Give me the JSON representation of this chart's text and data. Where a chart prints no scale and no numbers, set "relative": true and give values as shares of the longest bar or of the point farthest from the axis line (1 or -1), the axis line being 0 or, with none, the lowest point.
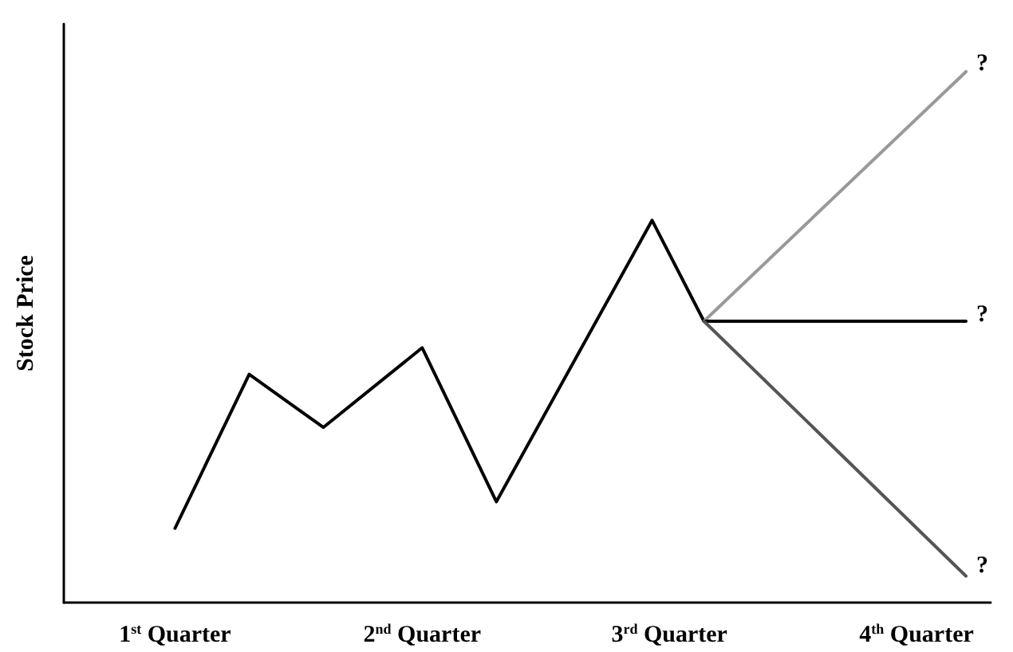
{
  "chart_data": {
    "type": "line",
    "relative": true,
    "ylabel": "Stock Price",
    "xlim": [
      0.55,
      4.3
    ],
    "xticks": [
      {
        "value": 1,
        "label": "1$^{st}$ Quarter"
      },
      {
        "value": 2,
        "label": "2$^{nd}$ Quarter"
      },
      {
        "value": 3,
        "label": "3$^{rd}$ Quarter"
      },
      {
        "value": 4,
        "label": "4$^{th}$ Quarter"
      }
    ],
    "series": [
      {
        "color": "#000000",
        "x": [
          1.0,
          1.3,
          1.6,
          2.0,
          2.3,
          2.93,
          3.14
        ],
        "values": [
          0.14,
          0.43,
          0.33,
          0.48,
          0.19,
          0.72,
          0.53
        ]
      },
      {
        "color": "#999999",
        "x": [
          3.14,
          4.2
        ],
        "values": [
          0.53,
          1
        ]
      },
      {
        "color": "#000000",
        "x": [
          3.14,
          4.2
        ],
        "values": [
          0.53,
          0.53
        ]
      },
      {
        "color": "#555555",
        "x": [
          3.14,
          4.2
        ],
        "values": [
          0.53,
          0.05
        ]
      }
    ],
    "annotations": [
      "?",
      "?",
      "?"
    ],
    "marker": "none",
    "line_style": "solid"
  }
}
